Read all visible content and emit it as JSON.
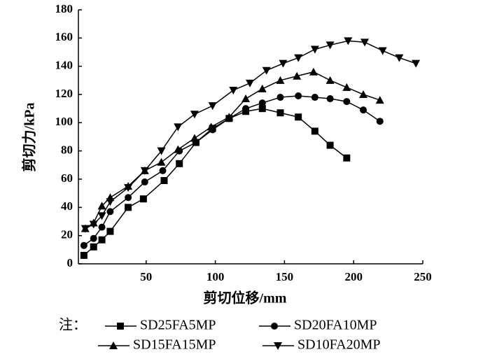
{
  "chart_data": {
    "type": "line",
    "x_label": "剪切位移/mm",
    "y_label": "剪切力/kPa",
    "legend_title": "注：",
    "xlim": [
      0,
      250
    ],
    "xticks": [
      50,
      100,
      150,
      200,
      250
    ],
    "ylim": [
      0,
      180
    ],
    "yticks": [
      0,
      20,
      40,
      60,
      80,
      100,
      120,
      140,
      160,
      180
    ],
    "series": [
      {
        "name": "SD25FA5MP",
        "color": "#000000",
        "marker": "square",
        "x": [
          5,
          12,
          18,
          24,
          37,
          48,
          63,
          74,
          86,
          98,
          110,
          122,
          134,
          147,
          160,
          172,
          183,
          195
        ],
        "values": [
          6,
          12,
          17,
          23,
          40,
          46,
          59,
          71,
          86,
          96,
          103,
          108,
          110,
          107,
          104,
          94,
          84,
          75
        ]
      },
      {
        "name": "SD20FA10MP",
        "color": "#000000",
        "marker": "circle",
        "x": [
          5,
          12,
          18,
          24,
          37,
          49,
          62,
          74,
          86,
          98,
          110,
          122,
          134,
          147,
          160,
          172,
          183,
          195,
          207,
          219
        ],
        "values": [
          13,
          18,
          26,
          37,
          47,
          58,
          66,
          80,
          86,
          95,
          103,
          110,
          114,
          118,
          119,
          118,
          117,
          115,
          109,
          101
        ]
      },
      {
        "name": "SD15FA15MP",
        "color": "#000000",
        "marker": "triangle-up",
        "x": [
          6,
          12,
          18,
          24,
          37,
          49,
          61,
          73,
          85,
          97,
          110,
          122,
          134,
          147,
          159,
          171,
          183,
          195,
          207,
          219
        ],
        "values": [
          25,
          29,
          41,
          47,
          55,
          66,
          72,
          81,
          89,
          97,
          104,
          117,
          124,
          130,
          133,
          136,
          130,
          125,
          120,
          116
        ]
      },
      {
        "name": "SD10FA20MP",
        "color": "#000000",
        "marker": "triangle-down",
        "x": [
          6,
          12,
          18,
          24,
          37,
          49,
          61,
          73,
          85,
          98,
          113,
          125,
          137,
          149,
          160,
          172,
          183,
          196,
          208,
          221,
          233,
          245
        ],
        "values": [
          25,
          28,
          34,
          44,
          54,
          66,
          80,
          97,
          106,
          112,
          123,
          128,
          137,
          142,
          146,
          152,
          155,
          158,
          157,
          151,
          146,
          142
        ]
      }
    ]
  }
}
